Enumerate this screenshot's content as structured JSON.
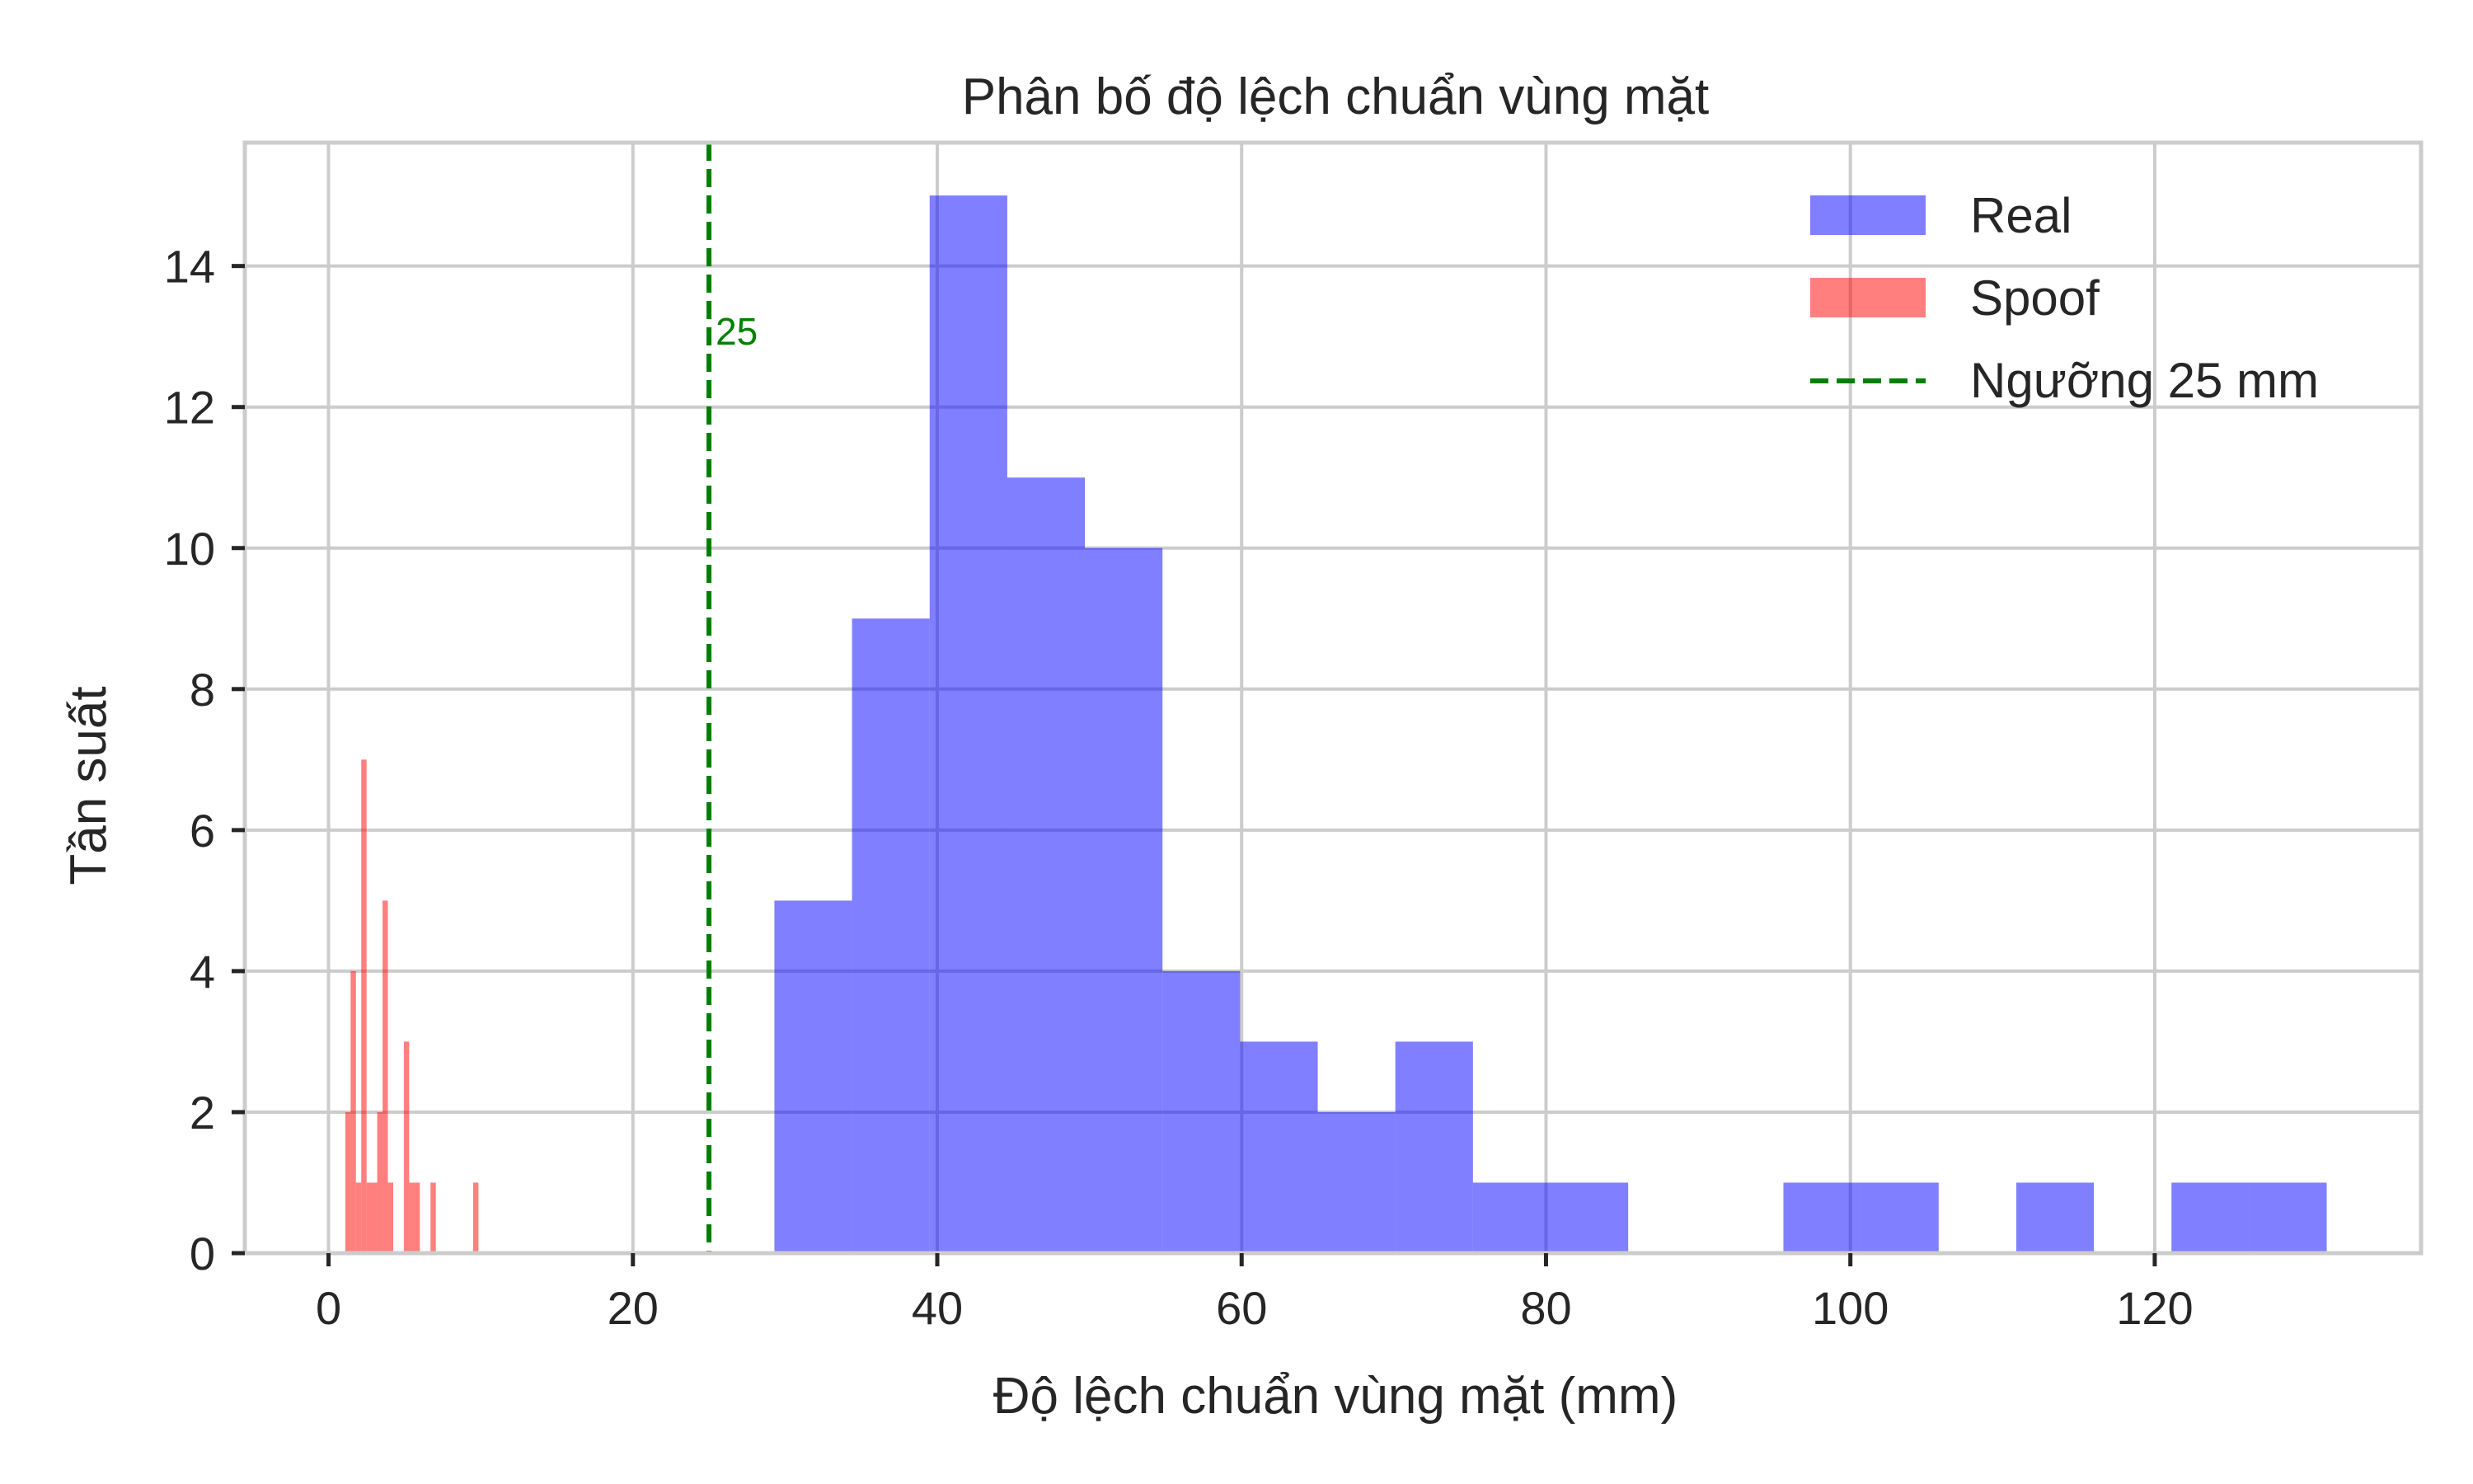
{
  "chart_data": {
    "type": "bar",
    "title": "Phân bố độ lệch chuẩn vùng mặt",
    "xlabel": "Độ lệch chuẩn vùng mặt (mm)",
    "ylabel": "Tần suất",
    "xlim": [
      -5.5,
      137.5
    ],
    "ylim": [
      0,
      15.75
    ],
    "xticks": [
      0,
      20,
      40,
      60,
      80,
      100,
      120
    ],
    "yticks": [
      0,
      2,
      4,
      6,
      8,
      10,
      12,
      14
    ],
    "grid": true,
    "legend_position": "top-right",
    "series": [
      {
        "name": "Real",
        "color": "#0000ff",
        "opacity": 0.5,
        "bins": [
          {
            "x0": 29.3,
            "x1": 34.4,
            "count": 5
          },
          {
            "x0": 34.4,
            "x1": 39.5,
            "count": 9
          },
          {
            "x0": 39.5,
            "x1": 44.6,
            "count": 15
          },
          {
            "x0": 44.6,
            "x1": 49.7,
            "count": 11
          },
          {
            "x0": 49.7,
            "x1": 54.8,
            "count": 10
          },
          {
            "x0": 54.8,
            "x1": 59.9,
            "count": 4
          },
          {
            "x0": 59.9,
            "x1": 65.0,
            "count": 3
          },
          {
            "x0": 65.0,
            "x1": 70.1,
            "count": 2
          },
          {
            "x0": 70.1,
            "x1": 75.2,
            "count": 3
          },
          {
            "x0": 75.2,
            "x1": 80.3,
            "count": 1
          },
          {
            "x0": 80.3,
            "x1": 85.4,
            "count": 1
          },
          {
            "x0": 95.6,
            "x1": 100.7,
            "count": 1
          },
          {
            "x0": 100.7,
            "x1": 105.8,
            "count": 1
          },
          {
            "x0": 110.9,
            "x1": 116.0,
            "count": 1
          },
          {
            "x0": 121.1,
            "x1": 126.2,
            "count": 1
          },
          {
            "x0": 126.2,
            "x1": 131.3,
            "count": 1
          }
        ]
      },
      {
        "name": "Spoof",
        "color": "#ff0000",
        "opacity": 0.5,
        "bins": [
          {
            "x0": 1.1,
            "x1": 1.45,
            "count": 2
          },
          {
            "x0": 1.45,
            "x1": 1.8,
            "count": 4
          },
          {
            "x0": 1.8,
            "x1": 2.15,
            "count": 1
          },
          {
            "x0": 2.15,
            "x1": 2.5,
            "count": 7
          },
          {
            "x0": 2.5,
            "x1": 3.2,
            "count": 1
          },
          {
            "x0": 3.2,
            "x1": 3.55,
            "count": 2
          },
          {
            "x0": 3.55,
            "x1": 3.9,
            "count": 5
          },
          {
            "x0": 3.9,
            "x1": 4.25,
            "count": 1
          },
          {
            "x0": 4.95,
            "x1": 5.3,
            "count": 3
          },
          {
            "x0": 5.3,
            "x1": 6.0,
            "count": 1
          },
          {
            "x0": 6.7,
            "x1": 7.05,
            "count": 1
          },
          {
            "x0": 9.5,
            "x1": 9.85,
            "count": 1
          }
        ]
      }
    ],
    "threshold": {
      "name": "Ngưỡng 25 mm",
      "value": 25,
      "label": "25",
      "color": "#008000",
      "style": "dashed"
    }
  }
}
